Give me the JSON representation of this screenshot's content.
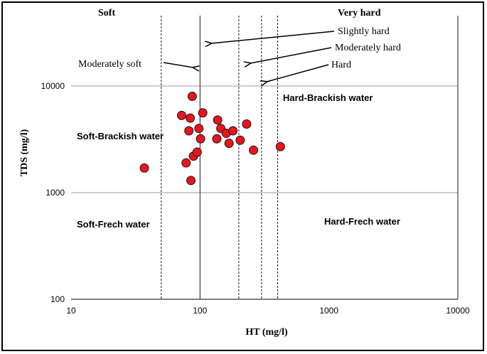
{
  "chart_data": {
    "type": "scatter",
    "xlabel": "HT (mg/l)",
    "ylabel": "TDS (mg/l)",
    "x_scale": "log",
    "y_scale": "log",
    "xlim": [
      10,
      10000
    ],
    "ylim": [
      100,
      50000
    ],
    "x_ticks": [
      10,
      100,
      1000,
      10000
    ],
    "x_tick_labels": [
      "10",
      "100",
      "1000",
      "10000"
    ],
    "y_ticks": [
      100,
      1000,
      10000
    ],
    "y_tick_labels": [
      "100",
      "1000",
      "10000"
    ],
    "grid": "horizontal lines at 1000 and 10000",
    "marker_color": "#e8141e",
    "marker_edge": "#1a1a1a",
    "points": [
      {
        "x": 37,
        "y": 1700
      },
      {
        "x": 72,
        "y": 5300
      },
      {
        "x": 78,
        "y": 1900
      },
      {
        "x": 82,
        "y": 3800
      },
      {
        "x": 84,
        "y": 5000
      },
      {
        "x": 85,
        "y": 1300
      },
      {
        "x": 87,
        "y": 8000
      },
      {
        "x": 89,
        "y": 2200
      },
      {
        "x": 95,
        "y": 2400
      },
      {
        "x": 98,
        "y": 4000
      },
      {
        "x": 101,
        "y": 3200
      },
      {
        "x": 105,
        "y": 5600
      },
      {
        "x": 135,
        "y": 3200
      },
      {
        "x": 137,
        "y": 4800
      },
      {
        "x": 145,
        "y": 4000
      },
      {
        "x": 160,
        "y": 3600
      },
      {
        "x": 168,
        "y": 2900
      },
      {
        "x": 180,
        "y": 3800
      },
      {
        "x": 205,
        "y": 3100
      },
      {
        "x": 230,
        "y": 4400
      },
      {
        "x": 260,
        "y": 2500
      },
      {
        "x": 420,
        "y": 2700
      }
    ],
    "boundaries": [
      {
        "x": 50,
        "style": "dashed"
      },
      {
        "x": 100,
        "style": "solid"
      },
      {
        "x": 200,
        "style": "dashed"
      },
      {
        "x": 300,
        "style": "dashed"
      },
      {
        "x": 400,
        "style": "dashed"
      },
      {
        "x": 10000,
        "style": "solid"
      }
    ],
    "annotations": {
      "soft": "Soft",
      "very_hard": "Very hard",
      "moderately_soft": "Moderately  soft",
      "slightly_hard": "Slightly hard",
      "moderately_hard": "Moderately  hard",
      "hard": "Hard",
      "soft_brackish": "Soft-Brackish water",
      "hard_brackish": "Hard-Brackish water",
      "soft_fresh": "Soft-Frech water",
      "hard_fresh": "Hard-Frech water"
    }
  }
}
